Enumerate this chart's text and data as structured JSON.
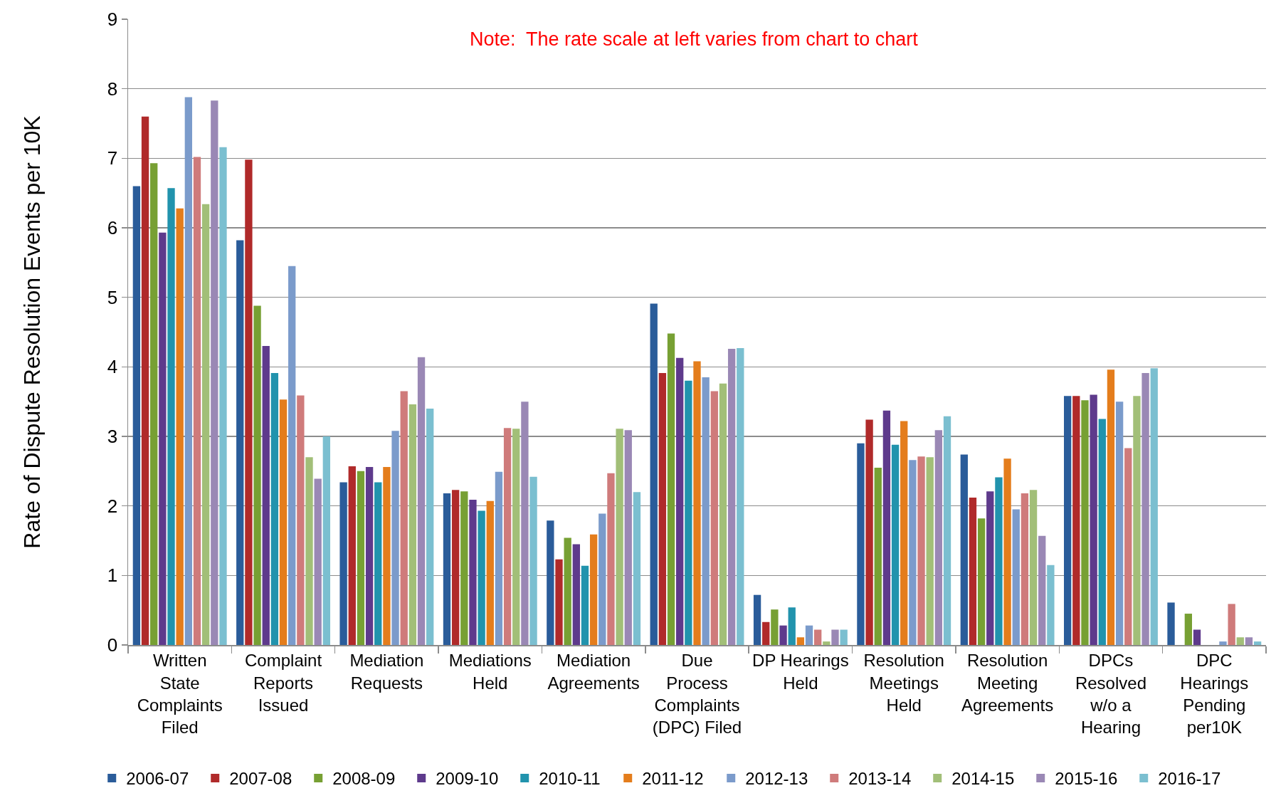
{
  "chart_data": {
    "type": "bar",
    "ylabel": "Rate of Dispute Resolution Events per 10K",
    "annotations": [
      "Note:  The rate scale at left varies from chart to chart"
    ],
    "categories": [
      "Written State Complaints Filed",
      "Complaint Reports Issued",
      "Mediation Requests",
      "Mediations Held",
      "Mediation Agreements",
      "Due Process Complaints (DPC) Filed",
      "DP Hearings Held",
      "Resolution Meetings Held",
      "Resolution Meeting Agreements",
      "DPCs Resolved w/o a Hearing",
      "DPC Hearings Pending per10K"
    ],
    "series": [
      {
        "name": "2006-07",
        "color": "#2a5c9a",
        "values": [
          6.6,
          5.82,
          2.34,
          2.18,
          1.79,
          4.91,
          0.72,
          2.9,
          2.74,
          3.58,
          0.61
        ]
      },
      {
        "name": "2007-08",
        "color": "#b02a2a",
        "values": [
          7.6,
          6.98,
          2.57,
          2.23,
          1.23,
          3.91,
          0.33,
          3.24,
          2.12,
          3.58,
          null
        ]
      },
      {
        "name": "2008-09",
        "color": "#77a033",
        "values": [
          6.93,
          4.88,
          2.5,
          2.21,
          1.54,
          4.48,
          0.51,
          2.55,
          1.82,
          3.52,
          0.45
        ]
      },
      {
        "name": "2009-10",
        "color": "#5e3a8c",
        "values": [
          5.93,
          4.3,
          2.56,
          2.09,
          1.45,
          4.13,
          0.28,
          3.37,
          2.21,
          3.6,
          0.22
        ]
      },
      {
        "name": "2010-11",
        "color": "#2193ad",
        "values": [
          6.57,
          3.91,
          2.34,
          1.93,
          1.14,
          3.8,
          0.54,
          2.88,
          2.41,
          3.25,
          null
        ]
      },
      {
        "name": "2011-12",
        "color": "#e47d1c",
        "values": [
          6.28,
          3.53,
          2.56,
          2.07,
          1.59,
          4.08,
          0.11,
          3.22,
          2.68,
          3.96,
          null
        ]
      },
      {
        "name": "2012-13",
        "color": "#7b9bcb",
        "values": [
          7.88,
          5.45,
          3.08,
          2.49,
          1.89,
          3.85,
          0.28,
          2.66,
          1.95,
          3.5,
          0.05
        ]
      },
      {
        "name": "2013-14",
        "color": "#cf7b7b",
        "values": [
          7.02,
          3.59,
          3.65,
          3.12,
          2.47,
          3.65,
          0.22,
          2.71,
          2.18,
          2.83,
          0.59
        ]
      },
      {
        "name": "2014-15",
        "color": "#a2bf78",
        "values": [
          6.34,
          2.7,
          3.46,
          3.11,
          3.11,
          3.76,
          0.05,
          2.7,
          2.23,
          3.58,
          0.11
        ]
      },
      {
        "name": "2015-16",
        "color": "#9a88b5",
        "values": [
          7.83,
          2.39,
          4.14,
          3.5,
          3.09,
          4.26,
          0.22,
          3.09,
          1.57,
          3.91,
          0.11
        ]
      },
      {
        "name": "2016-17",
        "color": "#7bbfd0",
        "values": [
          7.16,
          3.0,
          3.4,
          2.42,
          2.2,
          4.27,
          0.22,
          3.29,
          1.15,
          3.98,
          0.05
        ]
      }
    ],
    "ylim": [
      0,
      9
    ],
    "yticks": [
      0,
      1,
      2,
      3,
      4,
      5,
      6,
      7,
      8,
      9
    ],
    "grid": "y",
    "legend": "bottom"
  }
}
